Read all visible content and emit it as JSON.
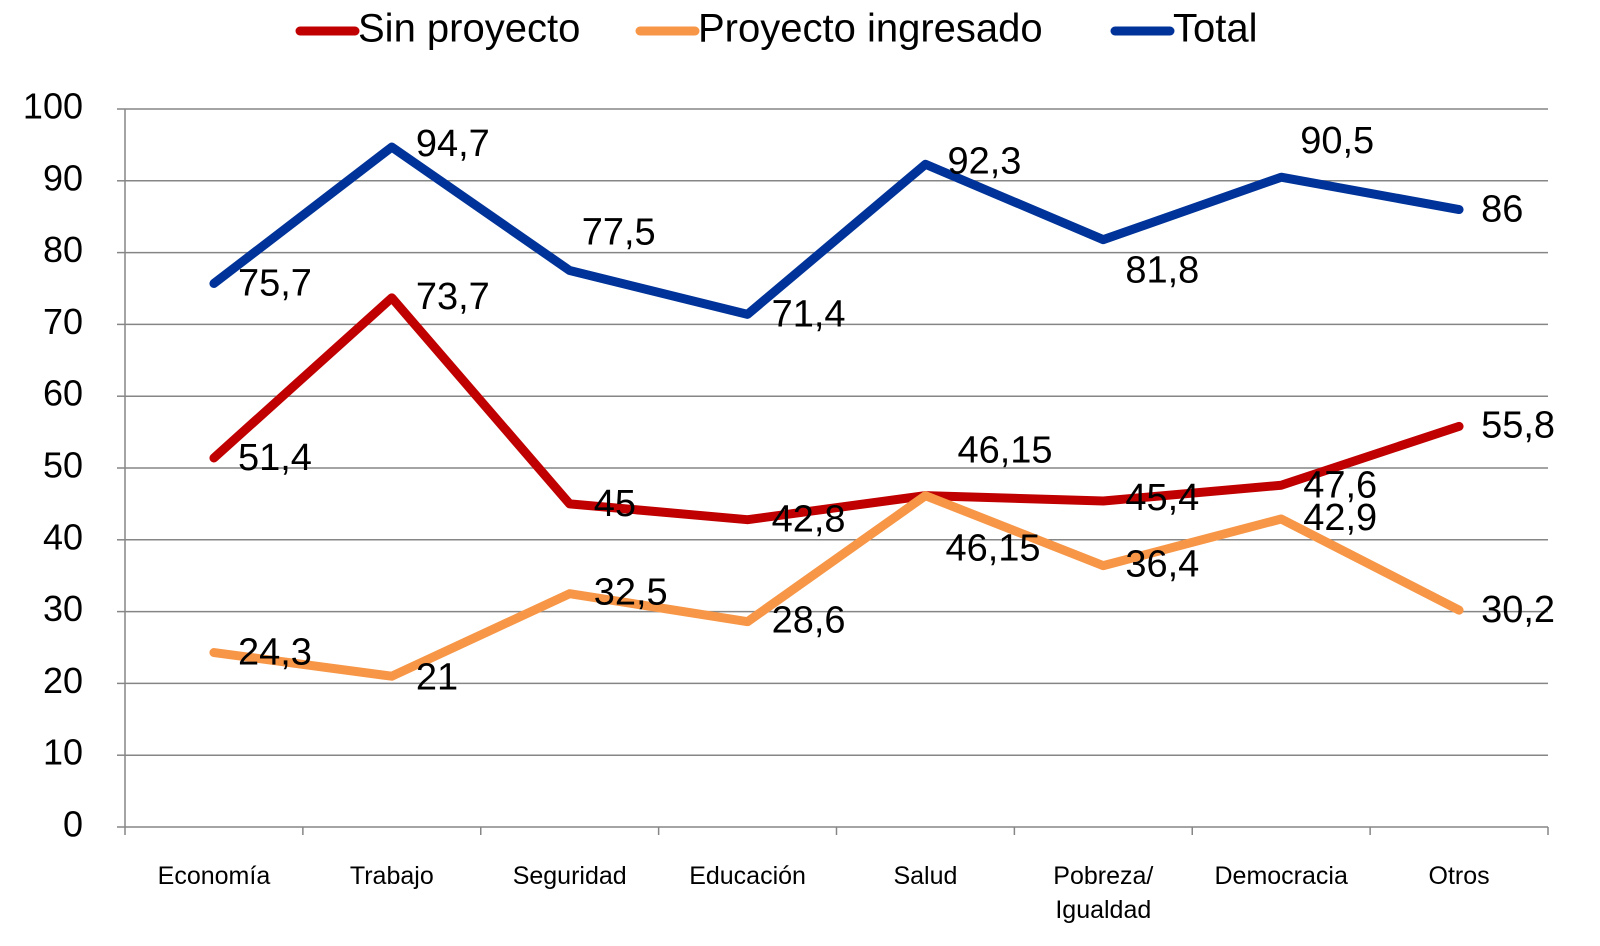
{
  "chart_data": {
    "type": "line",
    "categories": [
      "Economía",
      "Trabajo",
      "Seguridad",
      "Educación",
      "Salud",
      "Pobreza/ Igualdad",
      "Democracia",
      "Otros"
    ],
    "series": [
      {
        "name": "Sin proyecto",
        "color": "#c00000",
        "values": [
          51.4,
          73.7,
          45,
          42.8,
          46.15,
          45.4,
          47.6,
          55.8
        ],
        "value_labels": [
          "51,4",
          "73,7",
          "45",
          "42,8",
          "46,15",
          "45,4",
          "47,6",
          "55,8"
        ]
      },
      {
        "name": "Proyecto ingresado",
        "color": "#f79646",
        "values": [
          24.3,
          21,
          32.5,
          28.6,
          46.15,
          36.4,
          42.9,
          30.2
        ],
        "value_labels": [
          "24,3",
          "21",
          "32,5",
          "28,6",
          "46,15",
          "36,4",
          "42,9",
          "30,2"
        ]
      },
      {
        "name": "Total",
        "color": "#003399",
        "values": [
          75.7,
          94.7,
          77.5,
          71.4,
          92.3,
          81.8,
          90.5,
          86
        ],
        "value_labels": [
          "75,7",
          "94,7",
          "77,5",
          "71,4",
          "92,3",
          "81,8",
          "90,5",
          "86"
        ]
      }
    ],
    "ylim": [
      0,
      100
    ],
    "yticks": [
      0,
      10,
      20,
      30,
      40,
      50,
      60,
      70,
      80,
      90,
      100
    ],
    "grid": true,
    "legend": "top"
  }
}
